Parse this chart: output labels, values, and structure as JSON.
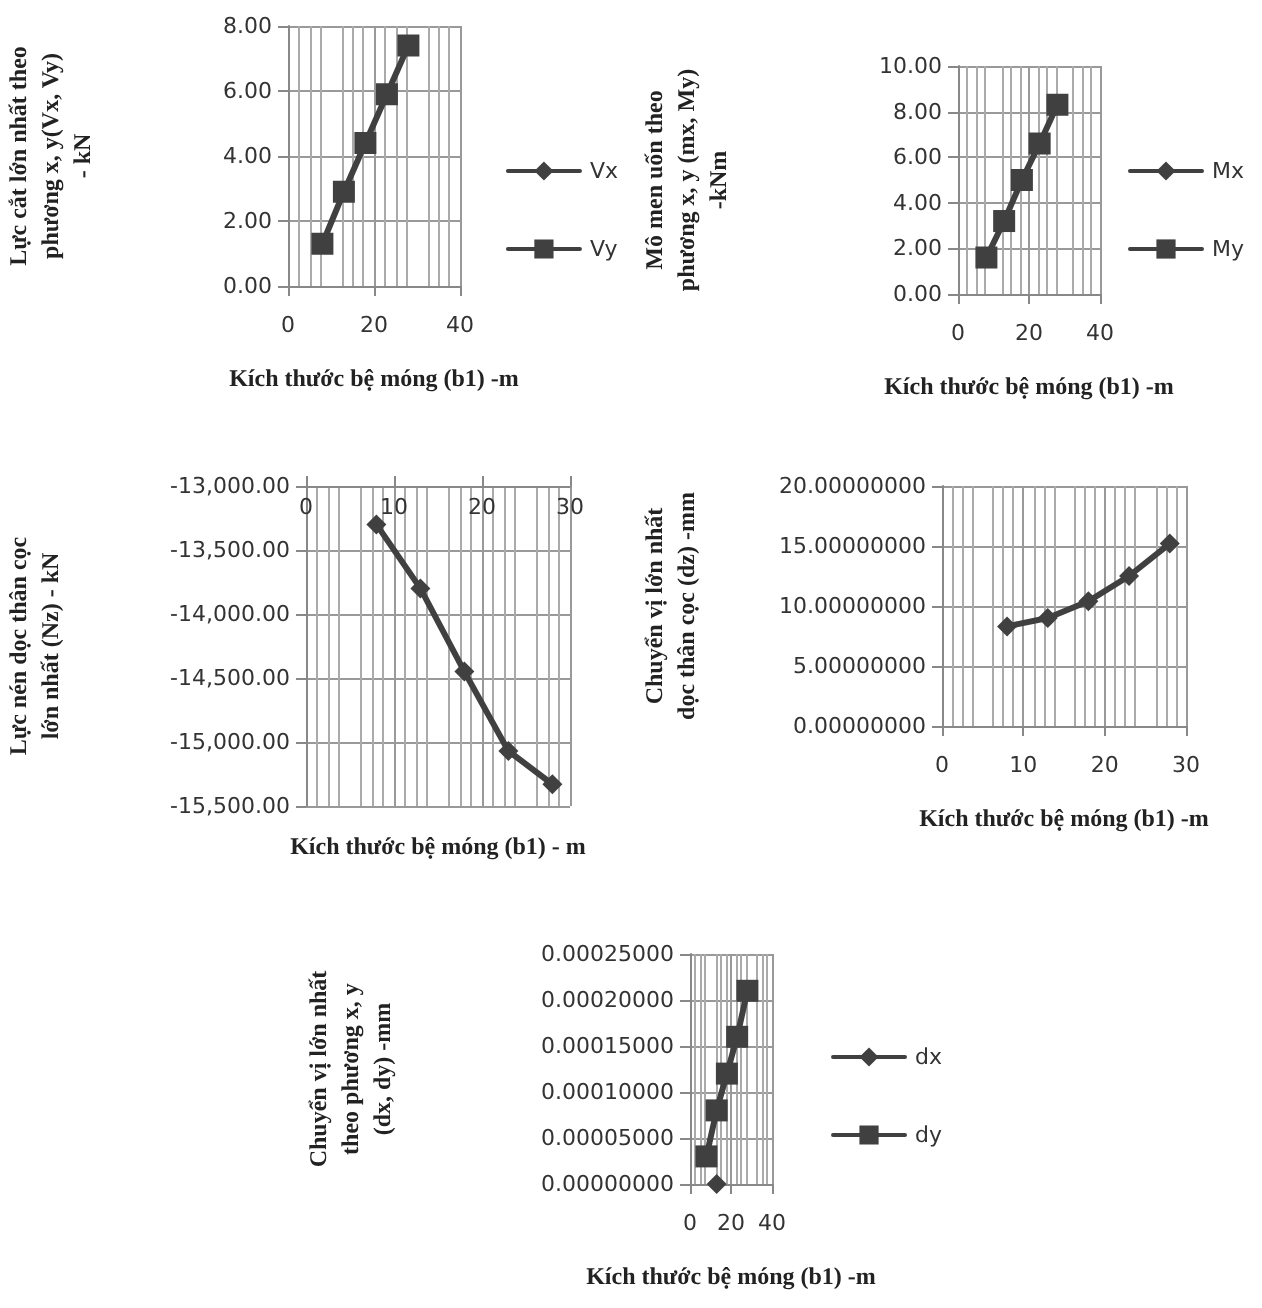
{
  "chart_data": [
    {
      "type": "line",
      "ylabel": "Lực cắt lớn nhất theo\nphương x, y(Vx, Vy)\n- kN",
      "xlabel": "Kích thước bệ móng (b1) -m",
      "x": [
        8,
        13,
        18,
        23,
        28
      ],
      "series": [
        {
          "name": "Vx",
          "color": "#404040",
          "marker": "diamond",
          "values": [
            null,
            null,
            null,
            null,
            null
          ]
        },
        {
          "name": "Vy",
          "color": "#404040",
          "marker": "square",
          "values": [
            1.3,
            2.9,
            4.4,
            5.9,
            7.4
          ]
        }
      ],
      "xlim": [
        0,
        40
      ],
      "xticks": [
        0,
        20,
        40
      ],
      "ylim": [
        0,
        8
      ],
      "yticks": [
        {
          "value": 0,
          "label": "0.00"
        },
        {
          "value": 2,
          "label": "2.00"
        },
        {
          "value": 4,
          "label": "4.00"
        },
        {
          "value": 6,
          "label": "6.00"
        },
        {
          "value": 8,
          "label": "8.00"
        }
      ],
      "grid": true,
      "legend": "right"
    },
    {
      "type": "line",
      "ylabel": "Mô men uốn theo\nphương x, y (mx, My)\n-kNm",
      "xlabel": "Kích thước bệ móng (b1) -m",
      "x": [
        8,
        13,
        18,
        23,
        28
      ],
      "series": [
        {
          "name": "Mx",
          "color": "#404040",
          "marker": "diamond",
          "values": [
            null,
            null,
            null,
            null,
            null
          ]
        },
        {
          "name": "My",
          "color": "#404040",
          "marker": "square",
          "values": [
            1.6,
            3.2,
            5.0,
            6.6,
            8.3
          ]
        }
      ],
      "xlim": [
        0,
        40
      ],
      "xticks": [
        0,
        20,
        40
      ],
      "ylim": [
        0,
        10
      ],
      "yticks": [
        {
          "value": 0,
          "label": "0.00"
        },
        {
          "value": 2,
          "label": "2.00"
        },
        {
          "value": 4,
          "label": "4.00"
        },
        {
          "value": 6,
          "label": "6.00"
        },
        {
          "value": 8,
          "label": "8.00"
        },
        {
          "value": 10,
          "label": "10.00"
        }
      ],
      "grid": true,
      "legend": "right"
    },
    {
      "type": "line",
      "ylabel": "Lực nén dọc thân cọc\nlớn nhất (Nz) - kN",
      "xlabel": "Kích thước bệ móng (b1) - m",
      "x": [
        8,
        13,
        18,
        23,
        28
      ],
      "series": [
        {
          "color": "#404040",
          "marker": "diamond",
          "values": [
            -13300,
            -13800,
            -14450,
            -15070,
            -15330
          ]
        }
      ],
      "xlim": [
        0,
        30
      ],
      "xticks": [
        0,
        10,
        20,
        30
      ],
      "ylim": [
        -15500,
        -13000
      ],
      "yticks": [
        {
          "value": -15500,
          "label": "-15,500.00"
        },
        {
          "value": -15000,
          "label": "-15,000.00"
        },
        {
          "value": -14500,
          "label": "-14,500.00"
        },
        {
          "value": -14000,
          "label": "-14,000.00"
        },
        {
          "value": -13500,
          "label": "-13,500.00"
        },
        {
          "value": -13000,
          "label": "-13,000.00"
        }
      ],
      "grid": true,
      "legend": false
    },
    {
      "type": "line",
      "ylabel": "Chuyển vị lớn nhất\ndọc thân cọc (dz) -mm",
      "xlabel": "Kích thước bệ móng (b1) -m",
      "x": [
        8,
        13,
        18,
        23,
        28
      ],
      "series": [
        {
          "color": "#404040",
          "marker": "diamond",
          "values": [
            8.3,
            9.0,
            10.4,
            12.5,
            15.2
          ]
        }
      ],
      "xlim": [
        0,
        30
      ],
      "xticks": [
        0,
        10,
        20,
        30
      ],
      "ylim": [
        0,
        20
      ],
      "yticks": [
        {
          "value": 0,
          "label": "0.00000000"
        },
        {
          "value": 5,
          "label": "5.00000000"
        },
        {
          "value": 10,
          "label": "10.00000000"
        },
        {
          "value": 15,
          "label": "15.00000000"
        },
        {
          "value": 20,
          "label": "20.00000000"
        }
      ],
      "grid": true,
      "legend": false
    },
    {
      "type": "line",
      "ylabel": "Chuyển vị lớn nhất\ntheo phương x, y\n(dx, dy) -mm",
      "xlabel": "Kích thước bệ móng (b1) -m",
      "x": [
        8,
        13,
        18,
        23,
        28
      ],
      "series": [
        {
          "name": "dx",
          "color": "#404040",
          "marker": "diamond",
          "values": [
            null,
            0,
            null,
            null,
            null
          ]
        },
        {
          "name": "dy",
          "color": "#404040",
          "marker": "square",
          "values": [
            3e-05,
            8e-05,
            0.00012,
            0.00016,
            0.00021
          ]
        }
      ],
      "xlim": [
        0,
        40
      ],
      "xticks": [
        0,
        20,
        40
      ],
      "ylim": [
        0,
        0.00025
      ],
      "yticks": [
        {
          "value": 0,
          "label": "0.00000000"
        },
        {
          "value": 5e-05,
          "label": "0.00005000"
        },
        {
          "value": 0.0001,
          "label": "0.00010000"
        },
        {
          "value": 0.00015,
          "label": "0.00015000"
        },
        {
          "value": 0.0002,
          "label": "0.00020000"
        },
        {
          "value": 0.00025,
          "label": "0.00025000"
        }
      ],
      "grid": true,
      "legend": "right"
    }
  ]
}
